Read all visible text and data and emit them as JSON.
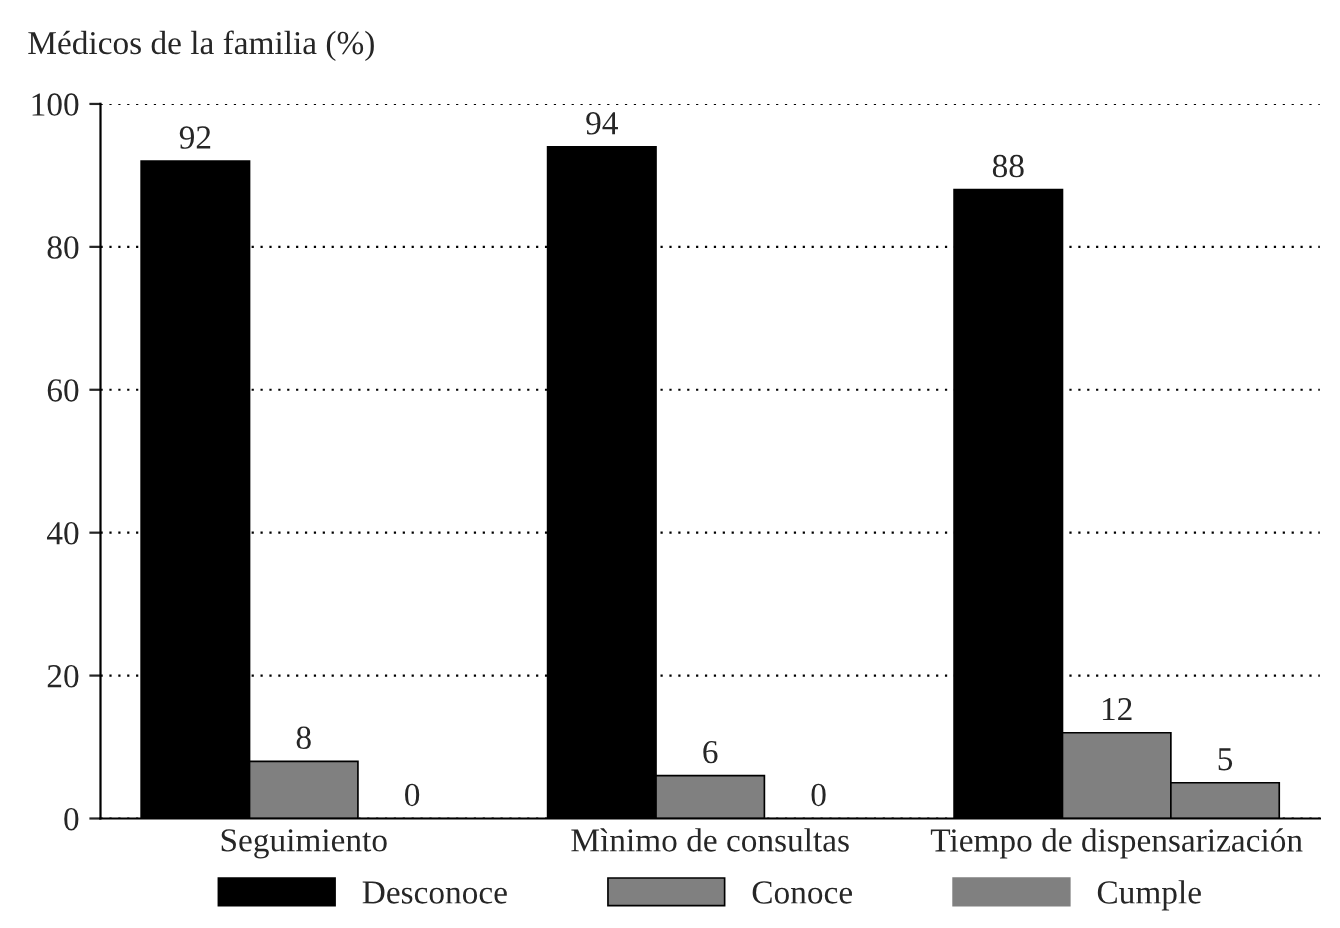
{
  "chart_data": {
    "type": "bar",
    "ylabel": "Médicos de la familia (%)",
    "categories": [
      "Seguimiento",
      "Mìnimo de consultas",
      "Tiempo de dispensarización"
    ],
    "series": [
      {
        "name": "Desconoce",
        "color": "#000000",
        "values": [
          92,
          94,
          88
        ]
      },
      {
        "name": "Conoce",
        "color": "#808080",
        "values": [
          8,
          6,
          12
        ]
      },
      {
        "name": "Cumple",
        "color": "#808080",
        "values": [
          0,
          0,
          5
        ]
      }
    ],
    "ylim": [
      0,
      100
    ],
    "yticks": [
      0,
      20,
      40,
      60,
      80,
      100
    ],
    "grid": "y",
    "legend": "bottom",
    "data_labels": true
  }
}
